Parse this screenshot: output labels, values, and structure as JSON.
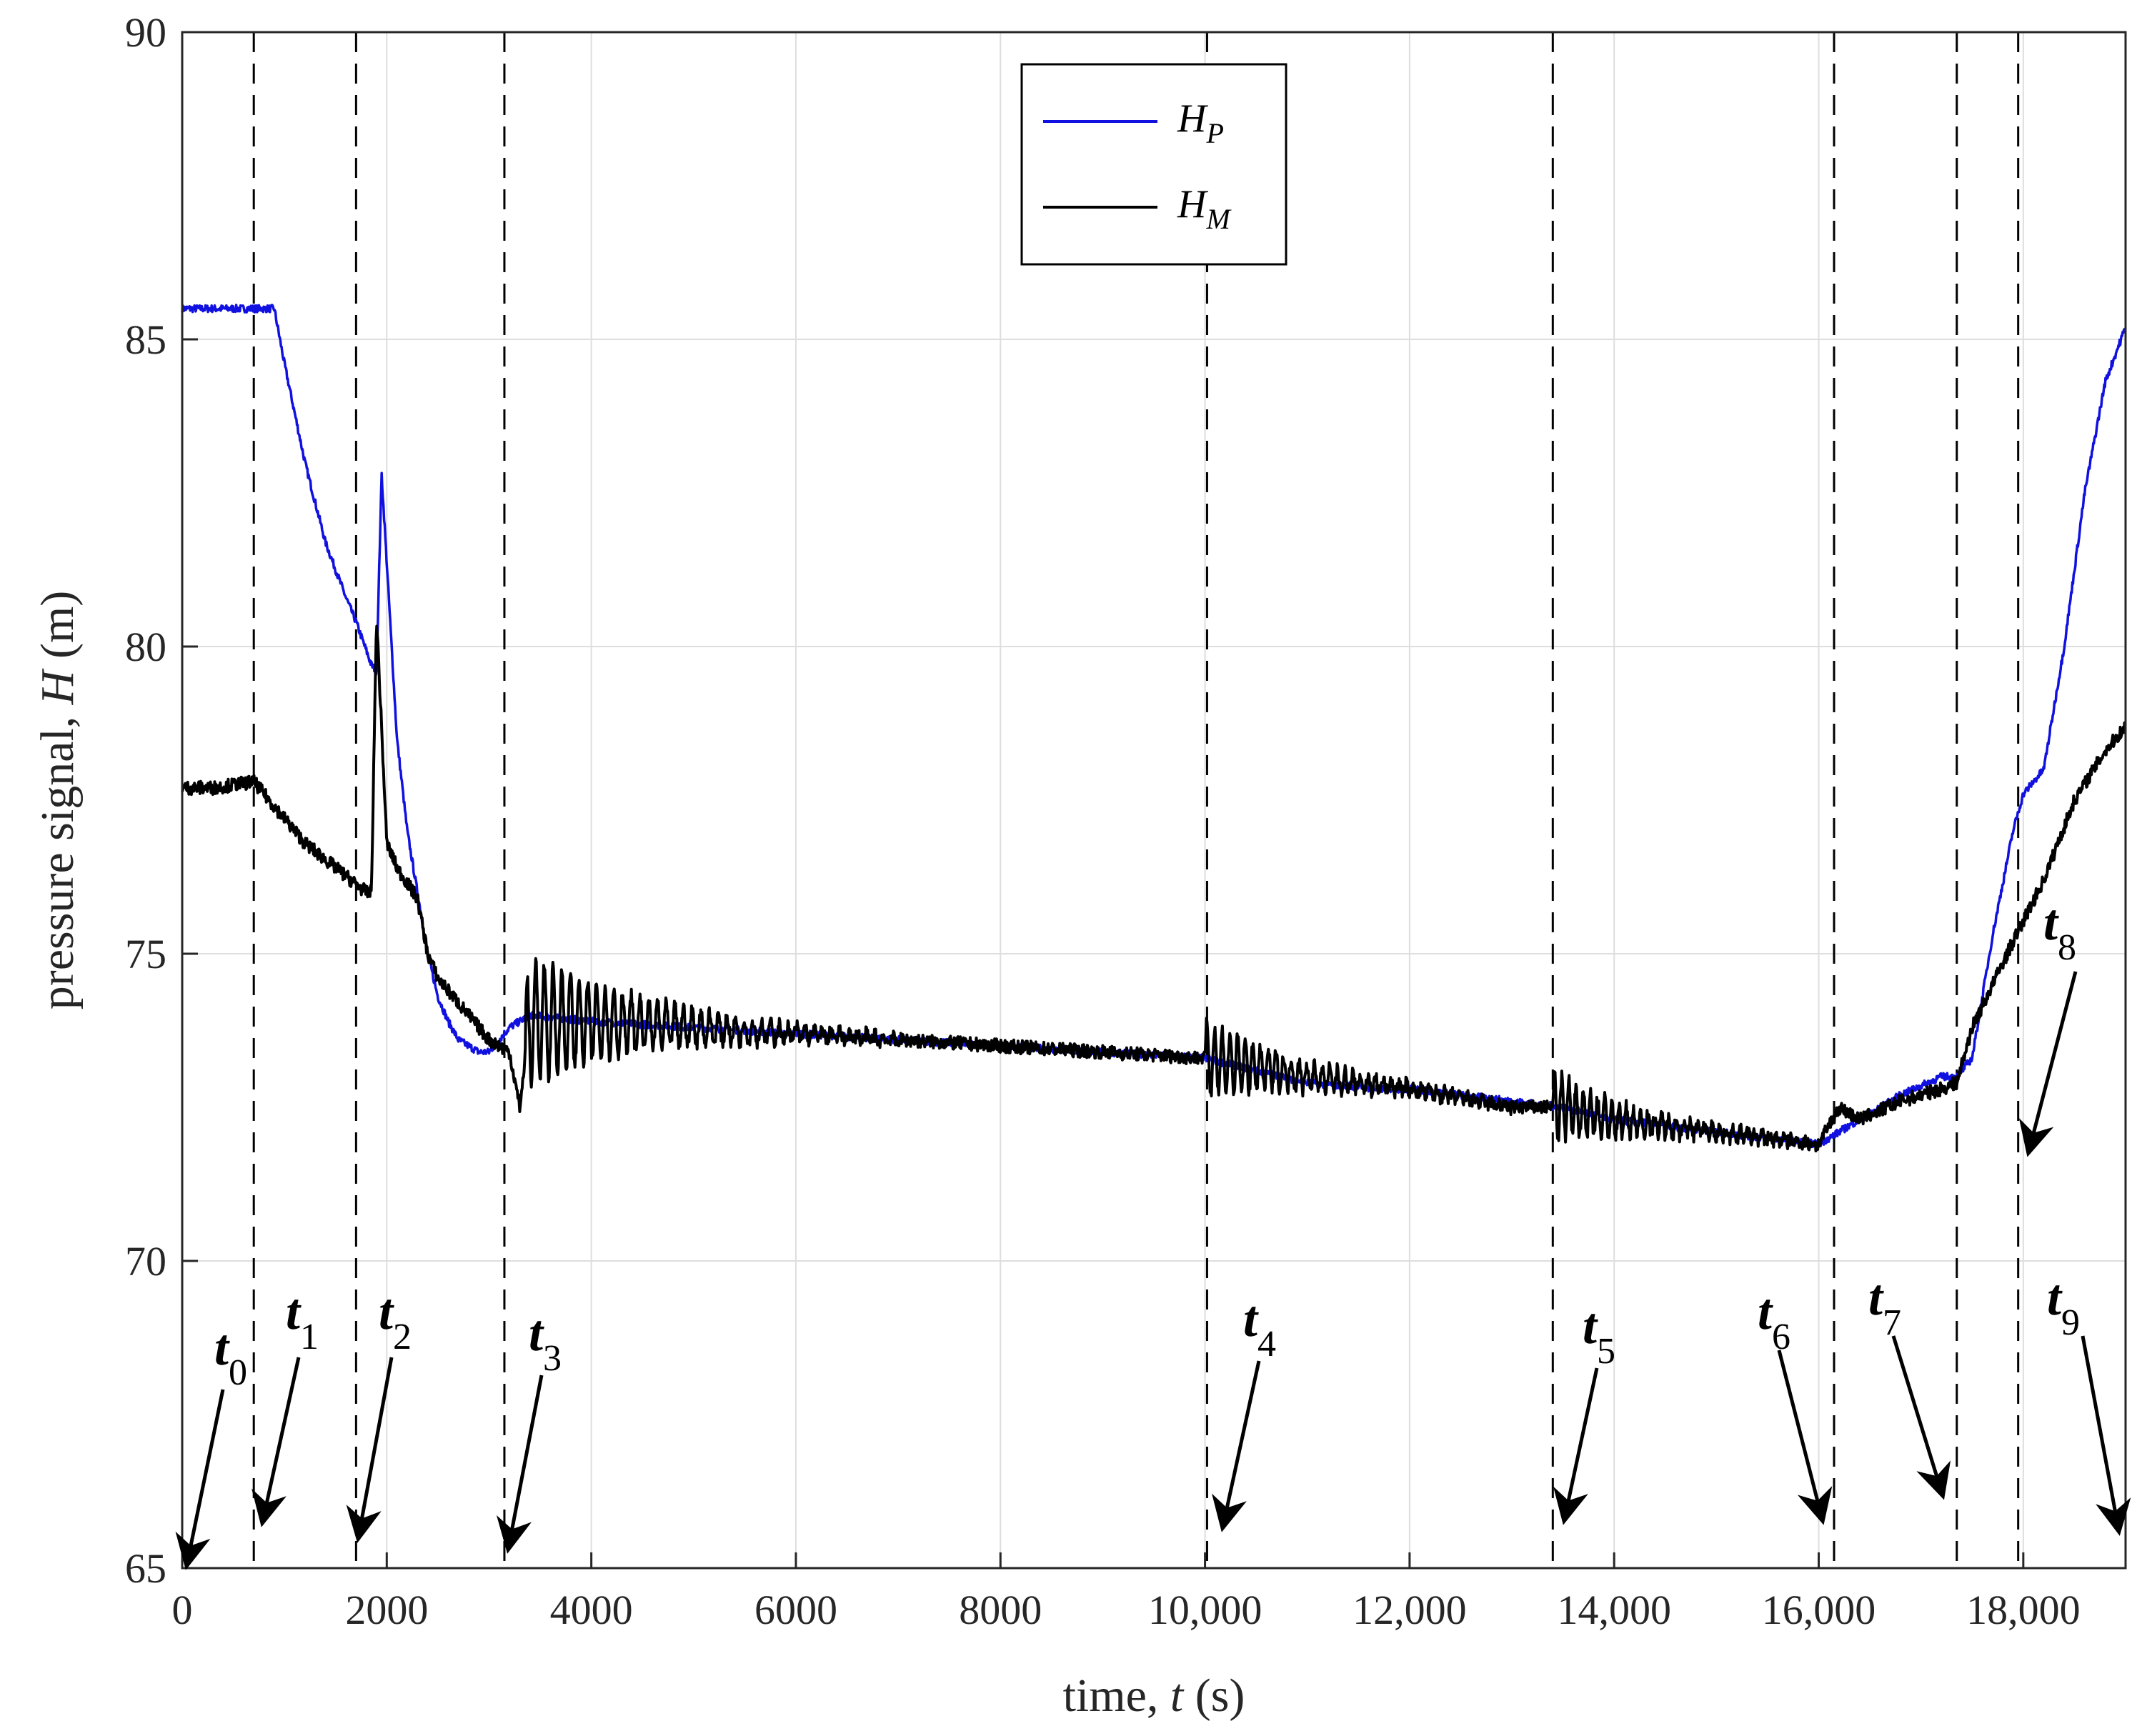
{
  "chart_data": {
    "type": "line",
    "xlabel": "time, t (s)",
    "xlabel_parts": [
      "time, ",
      "t",
      " (s)"
    ],
    "ylabel": "pressure signal, H (m)",
    "ylabel_parts": [
      "pressure signal, ",
      "H",
      " (m)"
    ],
    "xlim": [
      0,
      19000
    ],
    "ylim": [
      65,
      90
    ],
    "xticks": [
      0,
      2000,
      4000,
      6000,
      8000,
      10000,
      12000,
      14000,
      16000,
      18000
    ],
    "xtick_labels": [
      "0",
      "2000",
      "4000",
      "6000",
      "8000",
      "10,000",
      "12,000",
      "14,000",
      "16,000",
      "18,000"
    ],
    "yticks": [
      65,
      70,
      75,
      80,
      85,
      90
    ],
    "ytick_labels": [
      "65",
      "70",
      "75",
      "80",
      "85",
      "90"
    ],
    "grid": true,
    "legend": {
      "placement": "top-center",
      "entries": [
        {
          "main": "H",
          "sub": "P",
          "color": "#1010e0"
        },
        {
          "main": "H",
          "sub": "M",
          "color": "#000000"
        }
      ]
    },
    "series": [
      {
        "name": "H_P",
        "color": "#1010e0",
        "x": [
          0,
          300,
          500,
          700,
          900,
          1000,
          1200,
          1400,
          1600,
          1700,
          1850,
          1900,
          1950,
          2100,
          2200,
          2300,
          2400,
          2500,
          2600,
          2700,
          2900,
          3000,
          3200,
          3400,
          4000,
          5000,
          6000,
          7000,
          8000,
          9000,
          10000,
          11000,
          11700,
          12000,
          13000,
          13500,
          14000,
          15000,
          16000,
          16400,
          16800,
          17200,
          17350,
          17500,
          17700,
          17900,
          18000,
          18200,
          18400,
          18600,
          18800,
          19000
        ],
        "y": [
          85.5,
          85.5,
          85.5,
          85.5,
          85.5,
          84.6,
          83.0,
          81.7,
          80.8,
          80.4,
          79.7,
          79.6,
          82.8,
          78.5,
          77.0,
          76.0,
          75.0,
          74.3,
          73.9,
          73.6,
          73.4,
          73.4,
          73.8,
          74.0,
          73.9,
          73.8,
          73.7,
          73.6,
          73.5,
          73.4,
          73.3,
          72.9,
          72.8,
          72.8,
          72.6,
          72.5,
          72.3,
          72.1,
          71.9,
          72.3,
          72.7,
          73.0,
          73.0,
          73.3,
          75.3,
          77.0,
          77.6,
          78.0,
          80.0,
          82.5,
          84.3,
          85.2
        ]
      },
      {
        "name": "H_M",
        "color": "#000000",
        "x": [
          0,
          300,
          700,
          900,
          1200,
          1500,
          1800,
          1850,
          1900,
          2000,
          2100,
          2300,
          2400,
          2500,
          2800,
          3000,
          3200,
          3300,
          3400,
          4000,
          5000,
          6000,
          7000,
          8000,
          9000,
          10000,
          11000,
          12000,
          13000,
          13500,
          14000,
          15000,
          16000,
          16200,
          16400,
          16800,
          17200,
          17350,
          17500,
          17700,
          17900,
          18200,
          18500,
          18800,
          19000
        ],
        "y": [
          77.7,
          77.7,
          77.8,
          77.4,
          76.8,
          76.4,
          76.0,
          76.0,
          80.5,
          76.8,
          76.4,
          75.9,
          75.0,
          74.6,
          74.0,
          73.6,
          73.4,
          72.5,
          73.9,
          73.9,
          73.8,
          73.7,
          73.6,
          73.5,
          73.4,
          73.3,
          73.0,
          72.8,
          72.5,
          72.5,
          72.3,
          72.1,
          71.9,
          72.5,
          72.3,
          72.6,
          72.8,
          72.9,
          73.8,
          74.5,
          75.2,
          76.2,
          77.5,
          78.3,
          78.7
        ]
      }
    ],
    "oscillations": [
      {
        "series": "H_M",
        "t_start": 3350,
        "t_end": 7000,
        "amp_start": 1.1,
        "period": 85
      },
      {
        "series": "H_M",
        "t_start": 10000,
        "t_end": 13000,
        "amp_start": 0.6,
        "period": 75
      },
      {
        "series": "H_M",
        "t_start": 13400,
        "t_end": 16000,
        "amp_start": 0.55,
        "period": 70
      }
    ],
    "events": [
      {
        "label": "t",
        "sub": "0",
        "t": 0
      },
      {
        "label": "t",
        "sub": "1",
        "t": 700
      },
      {
        "label": "t",
        "sub": "2",
        "t": 1700
      },
      {
        "label": "t",
        "sub": "3",
        "t": 3150
      },
      {
        "label": "t",
        "sub": "4",
        "t": 10020
      },
      {
        "label": "t",
        "sub": "5",
        "t": 13400
      },
      {
        "label": "t",
        "sub": "6",
        "t": 16150
      },
      {
        "label": "t",
        "sub": "7",
        "t": 17350
      },
      {
        "label": "t",
        "sub": "8",
        "t": 17950
      },
      {
        "label": "t",
        "sub": "9",
        "t": 19000
      }
    ]
  }
}
